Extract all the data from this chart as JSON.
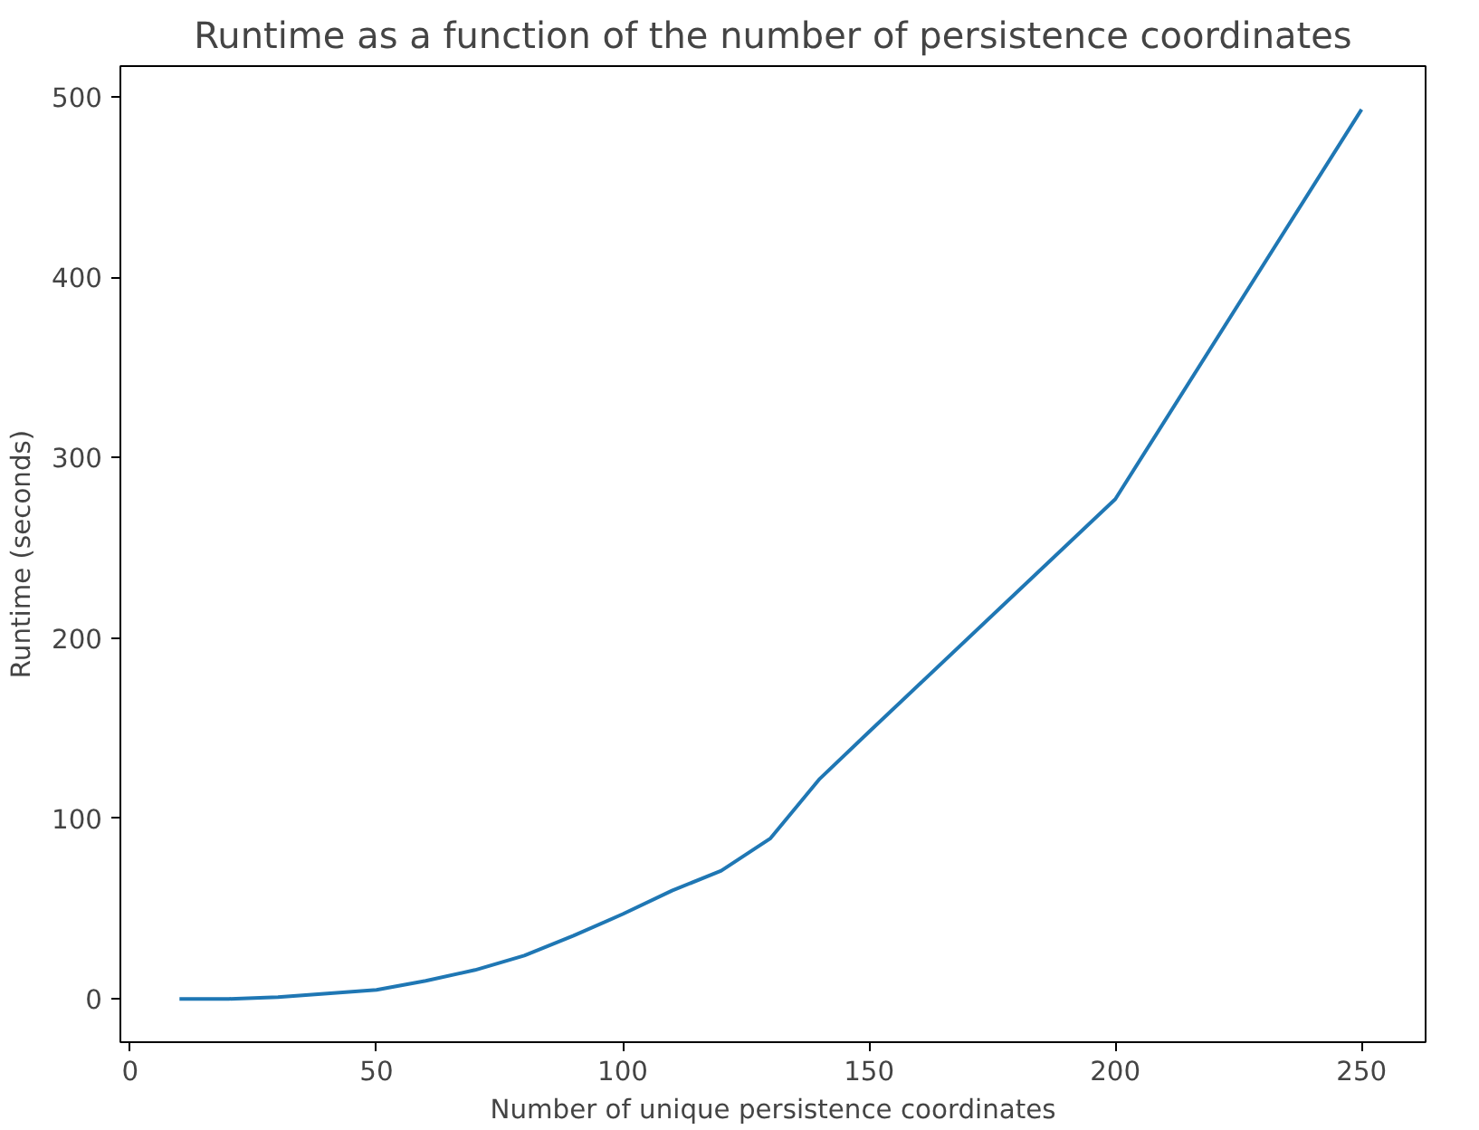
{
  "chart_data": {
    "type": "line",
    "title": "Runtime as a function of the number of persistence coordinates",
    "xlabel": "Number of unique persistence coordinates",
    "ylabel": "Runtime (seconds)",
    "x": [
      10,
      20,
      30,
      40,
      50,
      60,
      70,
      80,
      90,
      100,
      110,
      120,
      130,
      140,
      150,
      200,
      250
    ],
    "series": [
      {
        "color": "#1f77b4",
        "values": [
          0,
          0,
          1,
          3,
          5,
          10,
          16,
          24,
          35,
          47,
          60,
          71,
          89,
          122,
          148,
          277,
          493
        ]
      }
    ],
    "xlim": [
      -2,
      263
    ],
    "ylim": [
      -24,
      517
    ],
    "xticks": [
      0,
      50,
      100,
      150,
      200,
      250
    ],
    "yticks": [
      0,
      100,
      200,
      300,
      400,
      500
    ],
    "grid": false
  }
}
